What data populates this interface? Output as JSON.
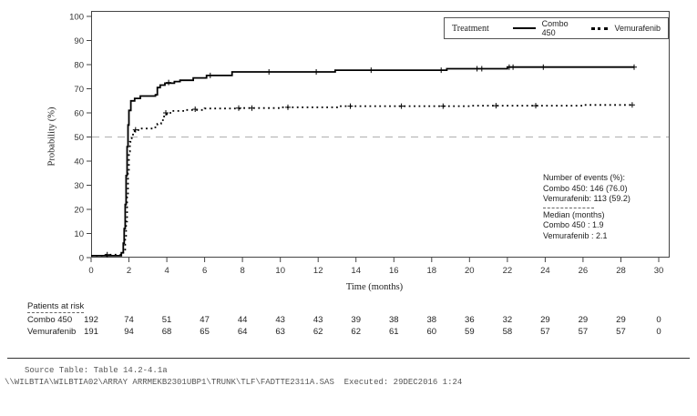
{
  "chart_data": {
    "type": "line",
    "subtype": "kaplan-meier-step",
    "title": "",
    "xlabel": "Time (months)",
    "ylabel": "Probability (%)",
    "xlim": [
      0,
      30.6
    ],
    "ylim": [
      0,
      102
    ],
    "x_ticks": [
      0,
      2,
      4,
      6,
      8,
      10,
      12,
      14,
      16,
      18,
      20,
      22,
      24,
      26,
      28,
      30
    ],
    "y_ticks": [
      0,
      10,
      20,
      30,
      40,
      50,
      60,
      70,
      80,
      90,
      100
    ],
    "reference_line_y": 50,
    "grid": false,
    "legend_position": "top-right-inside",
    "series": [
      {
        "name": "Combo 450",
        "style": "solid",
        "color": "#000000",
        "points": [
          [
            0,
            0.8
          ],
          [
            1.55,
            0.8
          ],
          [
            1.6,
            2
          ],
          [
            1.7,
            6
          ],
          [
            1.75,
            12
          ],
          [
            1.8,
            22
          ],
          [
            1.85,
            34
          ],
          [
            1.9,
            46
          ],
          [
            1.95,
            55
          ],
          [
            2.0,
            61
          ],
          [
            2.1,
            65
          ],
          [
            2.3,
            66
          ],
          [
            2.6,
            67
          ],
          [
            3.4,
            67.5
          ],
          [
            3.5,
            70.5
          ],
          [
            3.65,
            71.5
          ],
          [
            3.9,
            72.3
          ],
          [
            4.4,
            73
          ],
          [
            4.7,
            73.5
          ],
          [
            5.4,
            74.5
          ],
          [
            6.1,
            75.5
          ],
          [
            7.45,
            77
          ],
          [
            12.9,
            77.7
          ],
          [
            18.8,
            78.3
          ],
          [
            22.0,
            79
          ],
          [
            28.7,
            79
          ]
        ],
        "censor_marks": [
          [
            4.1,
            72.6
          ],
          [
            6.3,
            75.5
          ],
          [
            9.4,
            77
          ],
          [
            11.9,
            77
          ],
          [
            14.8,
            77.7
          ],
          [
            18.5,
            77.7
          ],
          [
            20.4,
            78.3
          ],
          [
            20.65,
            78.3
          ],
          [
            22.1,
            79
          ],
          [
            22.3,
            79
          ],
          [
            23.9,
            79
          ],
          [
            28.7,
            79
          ]
        ]
      },
      {
        "name": "Vemurafenib",
        "style": "dotted",
        "color": "#000000",
        "points": [
          [
            0,
            0.8
          ],
          [
            0.8,
            1.2
          ],
          [
            1.6,
            1.5
          ],
          [
            1.7,
            3
          ],
          [
            1.8,
            8
          ],
          [
            1.85,
            15
          ],
          [
            1.9,
            25
          ],
          [
            1.95,
            35
          ],
          [
            2.0,
            44
          ],
          [
            2.05,
            48
          ],
          [
            2.15,
            51
          ],
          [
            2.3,
            52.5
          ],
          [
            2.5,
            53.5
          ],
          [
            3.3,
            54
          ],
          [
            3.5,
            55.5
          ],
          [
            3.7,
            57
          ],
          [
            3.85,
            58.5
          ],
          [
            4.0,
            60
          ],
          [
            4.3,
            60.8
          ],
          [
            5.0,
            61.2
          ],
          [
            6.0,
            61.8
          ],
          [
            8.0,
            62
          ],
          [
            10.0,
            62.3
          ],
          [
            13.0,
            62.8
          ],
          [
            20.0,
            63
          ],
          [
            26.0,
            63.3
          ],
          [
            28.6,
            63.3
          ]
        ],
        "censor_marks": [
          [
            0.85,
            1.2
          ],
          [
            2.35,
            53
          ],
          [
            3.95,
            60
          ],
          [
            5.5,
            61.5
          ],
          [
            7.8,
            62
          ],
          [
            8.5,
            62
          ],
          [
            10.4,
            62.3
          ],
          [
            13.7,
            62.8
          ],
          [
            16.4,
            62.8
          ],
          [
            18.6,
            62.8
          ],
          [
            21.4,
            63
          ],
          [
            23.5,
            63
          ],
          [
            28.6,
            63.3
          ]
        ]
      }
    ]
  },
  "legend": {
    "title": "Treatment",
    "items": [
      {
        "label": "Combo 450",
        "style": "solid"
      },
      {
        "label": "Vemurafenib",
        "style": "dotted"
      }
    ]
  },
  "annotation": {
    "events_header": "Number of events (%):",
    "events": [
      "Combo 450: 146 (76.0)",
      "Vemurafenib: 113  (59.2)"
    ],
    "median_header": "Median (months)",
    "medians": [
      "Combo 450 : 1.9",
      "Vemurafenib : 2.1"
    ]
  },
  "at_risk": {
    "title": "Patients at risk",
    "times": [
      0,
      2,
      4,
      6,
      8,
      10,
      12,
      14,
      16,
      18,
      20,
      22,
      24,
      26,
      28,
      30
    ],
    "rows": [
      {
        "label": "Combo 450",
        "values": [
          192,
          74,
          51,
          47,
          44,
          43,
          43,
          39,
          38,
          38,
          36,
          32,
          29,
          29,
          29,
          0
        ]
      },
      {
        "label": "Vemurafenib",
        "values": [
          191,
          94,
          68,
          65,
          64,
          63,
          62,
          62,
          61,
          60,
          59,
          58,
          57,
          57,
          57,
          0
        ]
      }
    ]
  },
  "footer": {
    "line1": "Source Table: Table 14.2-4.1a",
    "line2": "\\\\WILBTIA\\WILBTIA02\\ARRAY ARRMEKB2301UBP1\\TRUNK\\TLF\\FADTTE2311A.SAS  Executed: 29DEC2016 1:24"
  },
  "colors": {
    "curve": "#000000",
    "reference_line": "#b8b8b8",
    "frame": "#444444",
    "footer_text": "#555555"
  }
}
